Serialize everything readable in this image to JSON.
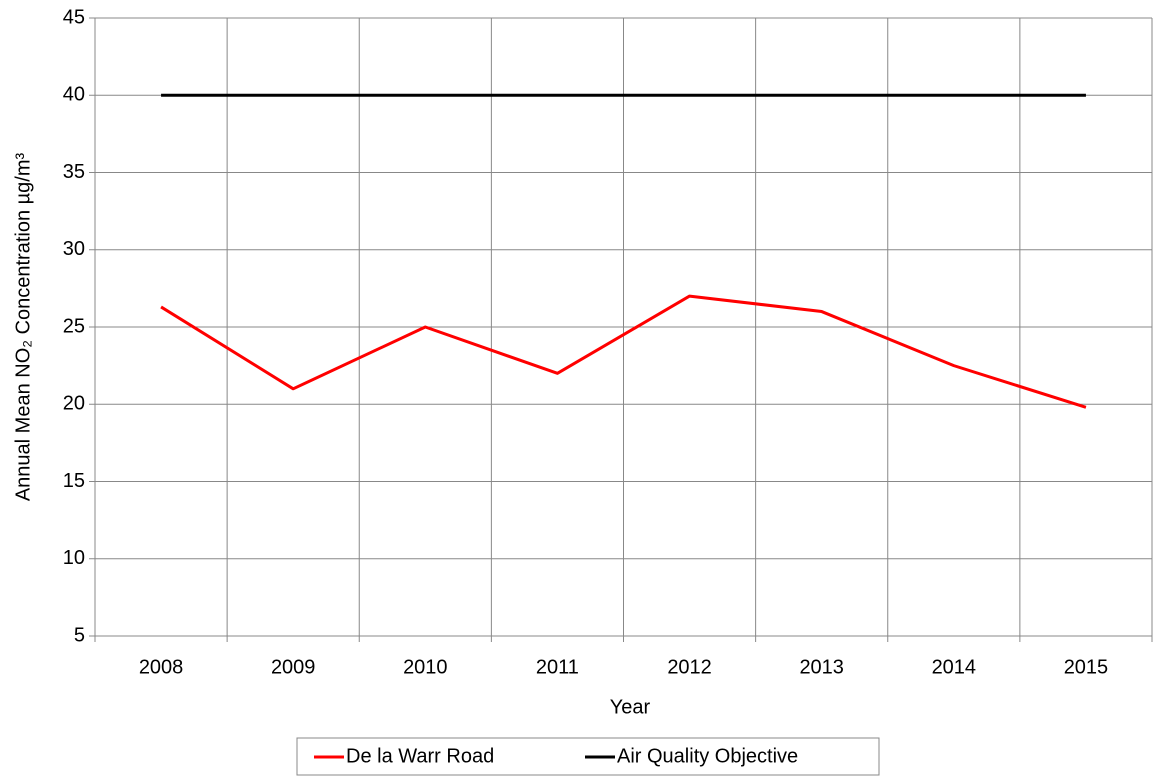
{
  "chart_data": {
    "type": "line",
    "x_label": "Year",
    "y_label": "Annual Mean NO₂ Concentration µg/m³",
    "categories": [
      "2008",
      "2009",
      "2010",
      "2011",
      "2012",
      "2013",
      "2014",
      "2015"
    ],
    "series": [
      {
        "name": "De la Warr Road",
        "color": "#ff0000",
        "values": [
          26.3,
          21,
          25,
          22,
          27,
          26,
          22.5,
          19.8
        ]
      },
      {
        "name": "Air Quality Objective",
        "color": "#000000",
        "values": [
          40,
          40,
          40,
          40,
          40,
          40,
          40,
          40
        ]
      }
    ],
    "ylim": [
      5,
      45
    ],
    "yticks": [
      5,
      10,
      15,
      20,
      25,
      30,
      35,
      40,
      45
    ],
    "grid": true,
    "legend": "bottom"
  }
}
